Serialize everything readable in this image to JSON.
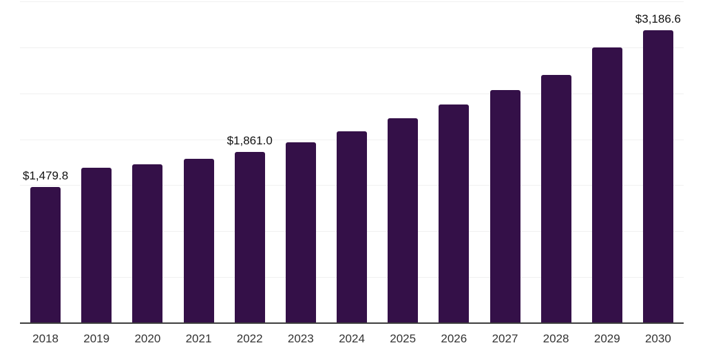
{
  "chart_data": {
    "type": "bar",
    "title": "",
    "xlabel": "",
    "ylabel": "",
    "categories": [
      "2018",
      "2019",
      "2020",
      "2021",
      "2022",
      "2023",
      "2024",
      "2025",
      "2026",
      "2027",
      "2028",
      "2029",
      "2030"
    ],
    "values": [
      1479.8,
      1690,
      1727,
      1787,
      1861.0,
      1967,
      2086,
      2228,
      2378,
      2535,
      2700,
      2999,
      3186.6
    ],
    "value_labels": [
      "$1,479.8",
      null,
      null,
      null,
      "$1,861.0",
      null,
      null,
      null,
      null,
      null,
      null,
      null,
      "$3,186.6"
    ],
    "ylim": [
      0,
      3500
    ],
    "gridline_step": 500,
    "grid": true,
    "legend": false,
    "y_tick_labels_visible": false,
    "colors": {
      "bar": "#341048",
      "gridline": "#f0f0f0",
      "axis_line": "#3c3c3c",
      "tick_label": "#333333",
      "value_label": "#111111",
      "background": "#ffffff"
    }
  }
}
